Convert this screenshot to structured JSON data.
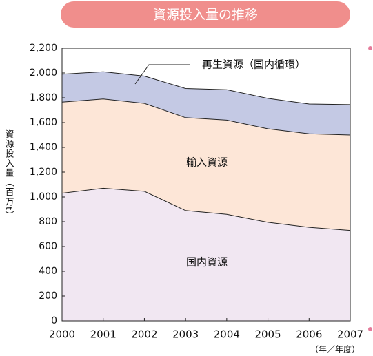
{
  "chart_data": {
    "type": "stacked_area",
    "title": "資源投入量の推移",
    "y_label": "資源投入量（百万t）",
    "x_unit": "（年／年度）",
    "x": [
      2000,
      2001,
      2002,
      2003,
      2004,
      2005,
      2006,
      2007
    ],
    "xlim": [
      2000,
      2007
    ],
    "xticks": [
      2000,
      2001,
      2002,
      2003,
      2004,
      2005,
      2006,
      2007
    ],
    "ylim": [
      0,
      2200
    ],
    "yticks": [
      0,
      200,
      400,
      600,
      800,
      {
        "value": 1000,
        "label": "1,000"
      },
      {
        "value": 1200,
        "label": "1,200"
      },
      {
        "value": 1400,
        "label": "1,400"
      },
      {
        "value": 1600,
        "label": "1,600"
      },
      {
        "value": 1800,
        "label": "1,800"
      },
      {
        "value": 2000,
        "label": "2,000"
      },
      {
        "value": 2200,
        "label": "2,200"
      }
    ],
    "series": [
      {
        "name": "国内資源",
        "color": "#f1e7f2",
        "values": [
          1030,
          1070,
          1045,
          890,
          860,
          795,
          755,
          730
        ]
      },
      {
        "name": "輸入資源",
        "color": "#fde6d7",
        "values": [
          735,
          720,
          710,
          750,
          760,
          755,
          755,
          770
        ]
      },
      {
        "name": "再生資源（国内循環）",
        "color": "#c4c9e4",
        "values": [
          225,
          220,
          220,
          235,
          245,
          245,
          240,
          245
        ]
      }
    ]
  }
}
